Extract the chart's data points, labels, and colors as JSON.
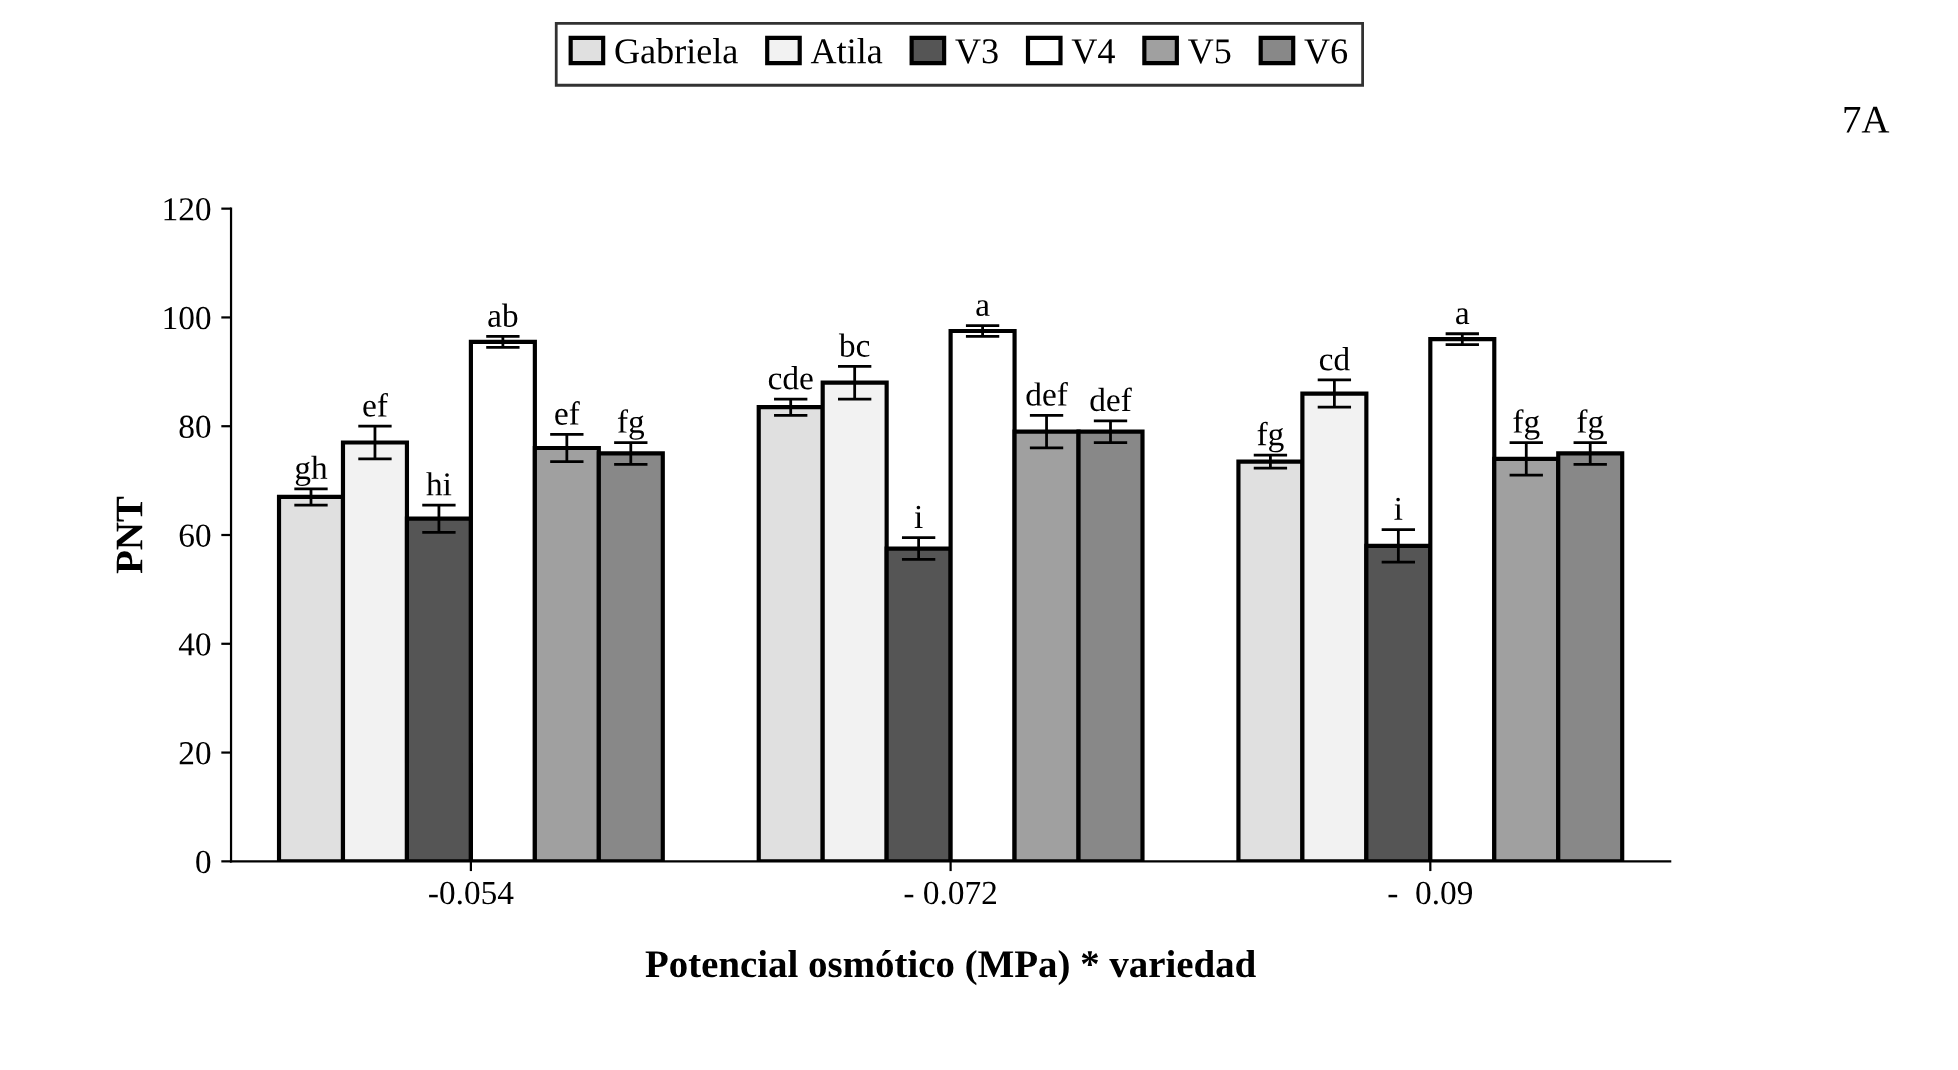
{
  "chart_data": {
    "type": "bar",
    "xlabel": "Potencial osmótico (MPa) * variedad",
    "ylabel": "PNT",
    "categories": [
      "-0.054",
      "- 0.072",
      "-  0.09"
    ],
    "series": [
      {
        "name": "Gabriela",
        "color": "#e0e0e0",
        "values": [
          67,
          83.5,
          73.5
        ],
        "errors": [
          1.5,
          1.5,
          1.2
        ],
        "value_labels": [
          "gh",
          "cde",
          "fg"
        ]
      },
      {
        "name": "Atila",
        "color": "#f2f2f2",
        "values": [
          77,
          88,
          86
        ],
        "errors": [
          3,
          3,
          2.5
        ],
        "value_labels": [
          "ef",
          "bc",
          "cd"
        ]
      },
      {
        "name": "V3",
        "color": "#555555",
        "values": [
          63,
          57.5,
          58
        ],
        "errors": [
          2.5,
          2,
          3
        ],
        "value_labels": [
          "hi",
          "i",
          "i"
        ]
      },
      {
        "name": "V4",
        "color": "#ffffff",
        "values": [
          95.5,
          97.5,
          96
        ],
        "errors": [
          1,
          1,
          1
        ],
        "value_labels": [
          "ab",
          "a",
          "a"
        ]
      },
      {
        "name": "V5",
        "color": "#a0a0a0",
        "values": [
          76,
          79,
          74
        ],
        "errors": [
          2.5,
          3,
          3
        ],
        "value_labels": [
          "ef",
          "def",
          "fg"
        ]
      },
      {
        "name": "V6",
        "color": "#888888",
        "values": [
          75,
          79,
          75
        ],
        "errors": [
          2,
          2,
          2
        ],
        "value_labels": [
          "fg",
          "def",
          "fg"
        ]
      }
    ],
    "ylim": [
      0,
      120
    ],
    "yticks": [
      0,
      20,
      40,
      60,
      80,
      100,
      120
    ],
    "grid": false,
    "legend": "top",
    "annotations": [
      "7A"
    ]
  }
}
